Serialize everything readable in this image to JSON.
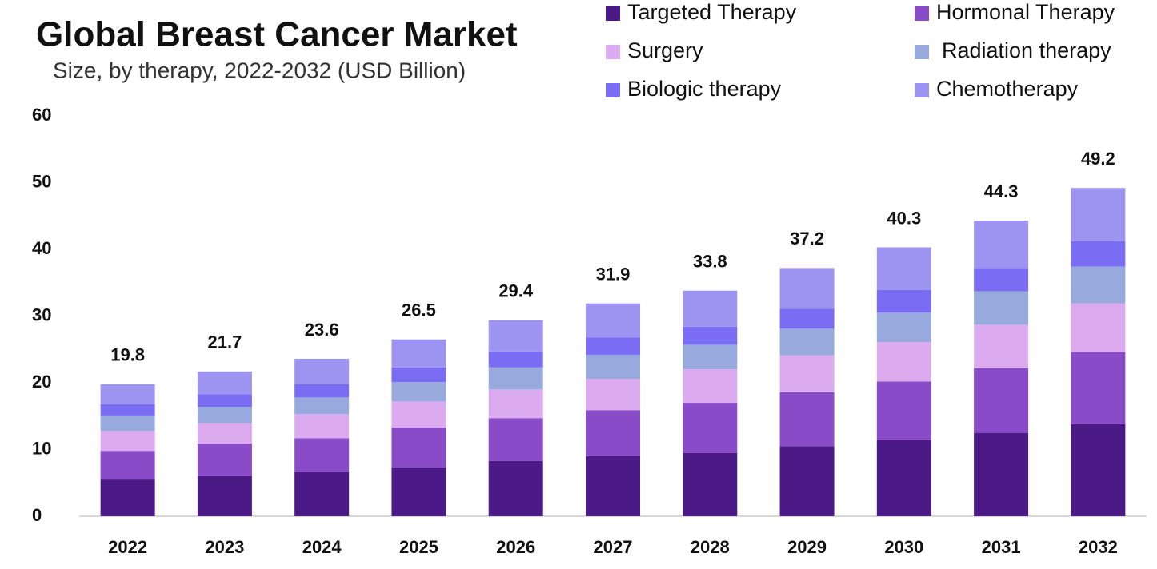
{
  "chart_data": {
    "type": "stacked-bar",
    "title": "Global Breast Cancer Market",
    "subtitle": "Size, by therapy, 2022-2032 (USD Billion)",
    "categories": [
      "2022",
      "2023",
      "2024",
      "2025",
      "2026",
      "2027",
      "2028",
      "2029",
      "2030",
      "2031",
      "2032"
    ],
    "series": [
      {
        "name": "Targeted Therapy",
        "color": "#4b1a87",
        "values": [
          5.5,
          6.0,
          6.6,
          7.3,
          8.3,
          9.0,
          9.5,
          10.5,
          11.4,
          12.5,
          13.8
        ]
      },
      {
        "name": "Hormonal Therapy",
        "color": "#8a4bc9",
        "values": [
          4.3,
          4.9,
          5.1,
          6.0,
          6.4,
          6.9,
          7.5,
          8.1,
          8.8,
          9.7,
          10.8
        ]
      },
      {
        "name": "Surgery",
        "color": "#dcaaee",
        "values": [
          3.0,
          3.1,
          3.6,
          3.9,
          4.3,
          4.7,
          5.0,
          5.5,
          5.9,
          6.5,
          7.3
        ]
      },
      {
        "name": "Radiation therapy",
        "color": "#98aadd",
        "values": [
          2.3,
          2.4,
          2.5,
          2.9,
          3.3,
          3.6,
          3.7,
          4.0,
          4.4,
          5.0,
          5.5
        ]
      },
      {
        "name": "Biologic therapy",
        "color": "#7b6cf4",
        "values": [
          1.7,
          1.9,
          2.0,
          2.2,
          2.4,
          2.6,
          2.7,
          3.0,
          3.4,
          3.5,
          3.8
        ]
      },
      {
        "name": "Chemotherapy",
        "color": "#9d94f1",
        "values": [
          3.0,
          3.4,
          3.8,
          4.2,
          4.7,
          5.1,
          5.4,
          6.1,
          6.4,
          7.1,
          8.0
        ]
      }
    ],
    "totals": [
      19.8,
      21.7,
      23.6,
      26.5,
      29.4,
      31.9,
      33.8,
      37.2,
      40.3,
      44.3,
      49.2
    ],
    "ylim": [
      0,
      60
    ],
    "yticks": [
      0,
      10,
      20,
      30,
      40,
      50,
      60
    ],
    "grid": false
  }
}
